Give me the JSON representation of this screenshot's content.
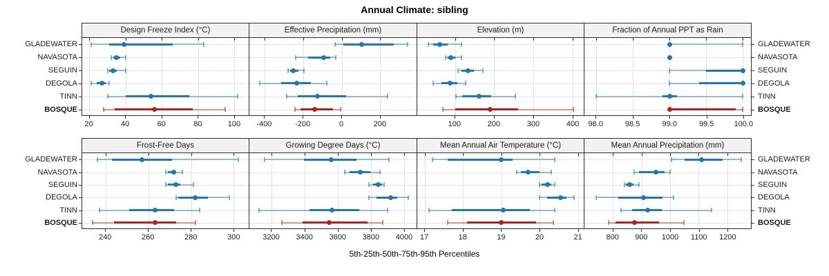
{
  "title": "Annual Climate: sibling",
  "caption": "5th-25th-50th-75th-95th Percentiles",
  "chart_data": {
    "type": "trellis-percentile-dotplot",
    "title": "Annual Climate: sibling",
    "xlabel": "5th-25th-50th-75th-95th Percentiles",
    "percentiles": [
      5,
      25,
      50,
      75,
      95
    ],
    "categories": [
      "GLADEWATER",
      "NAVASOTA",
      "SEGUIN",
      "DEGOLA",
      "TINN",
      "BOSQUE"
    ],
    "highlight_category": "BOSQUE",
    "layout": {
      "rows": 2,
      "cols": 4,
      "legend": "none",
      "grid": "dotted",
      "row_labels": "both-sides"
    },
    "colors": {
      "series": "#1F77B4",
      "highlight": "#B22222",
      "grid": "#C9C9C9",
      "strip_bg": "#F2F2F2",
      "border": "#2B2B2B"
    },
    "panels": [
      {
        "title": "Design Freeze Index (°C)",
        "ticks": [
          20,
          40,
          60,
          80,
          100
        ],
        "xlim": [
          16,
          108
        ],
        "series": {
          "GLADEWATER": [
            21,
            31,
            39,
            66,
            83
          ],
          "NAVASOTA": [
            32,
            33,
            35,
            37,
            40
          ],
          "SEGUIN": [
            30,
            31,
            33,
            35,
            40
          ],
          "DEGOLA": [
            21,
            24,
            27,
            29,
            31
          ],
          "TINN": [
            30,
            40,
            54,
            75,
            102
          ],
          "BOSQUE": [
            28,
            34,
            56,
            77,
            95
          ]
        }
      },
      {
        "title": "Effective Precipitation (mm)",
        "ticks": [
          -400,
          -200,
          0,
          200
        ],
        "xlim": [
          -480,
          390
        ],
        "series": {
          "GLADEWATER": [
            -35,
            10,
            105,
            270,
            345
          ],
          "NAVASOTA": [
            -240,
            -175,
            -95,
            -60,
            -30
          ],
          "SEGUIN": [
            -280,
            -268,
            -253,
            -225,
            -196
          ],
          "DEGOLA": [
            -425,
            -313,
            -235,
            -160,
            -76
          ],
          "TINN": [
            -285,
            -230,
            -125,
            25,
            240
          ],
          "BOSQUE": [
            -244,
            -215,
            -140,
            -46,
            -5
          ]
        }
      },
      {
        "title": "Elevation (m)",
        "ticks": [
          100,
          200,
          300,
          400
        ],
        "xlim": [
          4,
          428
        ],
        "series": {
          "GLADEWATER": [
            32,
            44,
            62,
            81,
            116
          ],
          "NAVASOTA": [
            77,
            82,
            90,
            100,
            116
          ],
          "SEGUIN": [
            108,
            116,
            134,
            148,
            172
          ],
          "DEGOLA": [
            45,
            65,
            88,
            106,
            128
          ],
          "TINN": [
            102,
            119,
            162,
            192,
            254
          ],
          "BOSQUE": [
            69,
            100,
            190,
            260,
            402
          ]
        }
      },
      {
        "title": "Fraction of Annual PPT as Rain",
        "ticks": [
          98.0,
          98.5,
          99.0,
          99.5,
          100.0
        ],
        "tick_labels": [
          "98.0",
          "98.5",
          "99.0",
          "99.5",
          "100.0"
        ],
        "xlim": [
          97.84,
          100.11
        ],
        "series": {
          "GLADEWATER": [
            99,
            99,
            99,
            99,
            100
          ],
          "NAVASOTA": [
            99,
            99,
            99,
            99,
            99
          ],
          "SEGUIN": [
            99,
            99.5,
            100,
            100,
            100
          ],
          "DEGOLA": [
            99,
            99.4,
            100,
            100,
            100
          ],
          "TINN": [
            98,
            98.9,
            99,
            99.1,
            100
          ],
          "BOSQUE": [
            99,
            99,
            99,
            99.9,
            100
          ]
        }
      },
      {
        "title": "Frost-Free Days",
        "ticks": [
          240,
          260,
          280,
          300
        ],
        "xlim": [
          229,
          307
        ],
        "series": {
          "GLADEWATER": [
            236,
            243,
            257,
            271,
            302
          ],
          "NAVASOTA": [
            268,
            269,
            272,
            273,
            276
          ],
          "SEGUIN": [
            268,
            269,
            273,
            275,
            281
          ],
          "DEGOLA": [
            273,
            274,
            282,
            288,
            298
          ],
          "TINN": [
            237,
            251,
            263,
            272,
            284
          ],
          "BOSQUE": [
            234,
            244,
            263,
            273,
            282
          ]
        }
      },
      {
        "title": "Growing Degree Days (°C)",
        "ticks": [
          3200,
          3400,
          3600,
          3800,
          4000
        ],
        "xlim": [
          3065,
          4075
        ],
        "series": {
          "GLADEWATER": [
            3155,
            3395,
            3560,
            3710,
            3910
          ],
          "NAVASOTA": [
            3640,
            3670,
            3735,
            3795,
            3855
          ],
          "SEGUIN": [
            3785,
            3810,
            3845,
            3865,
            3880
          ],
          "DEGOLA": [
            3785,
            3835,
            3920,
            3960,
            4025
          ],
          "TINN": [
            3125,
            3430,
            3565,
            3730,
            3900
          ],
          "BOSQUE": [
            3260,
            3385,
            3545,
            3780,
            3870
          ]
        }
      },
      {
        "title": "Mean Annual Air Temperature (°C)",
        "ticks": [
          17,
          18,
          19,
          20,
          21
        ],
        "xlim": [
          16.8,
          21.15
        ],
        "series": {
          "GLADEWATER": [
            17.2,
            17.6,
            19.0,
            19.3,
            20.4
          ],
          "NAVASOTA": [
            19.4,
            19.5,
            19.7,
            20.0,
            20.3
          ],
          "SEGUIN": [
            20.0,
            20.05,
            20.2,
            20.3,
            20.4
          ],
          "DEGOLA": [
            20.0,
            20.2,
            20.55,
            20.7,
            20.9
          ],
          "TINN": [
            17.1,
            17.7,
            19.05,
            19.75,
            20.4
          ],
          "BOSQUE": [
            17.6,
            18.1,
            19.0,
            19.9,
            20.35
          ]
        }
      },
      {
        "title": "Mean Annual Precipitation (mm)",
        "ticks": [
          800,
          900,
          1000,
          1100,
          1200
        ],
        "xlim": [
          700,
          1283
        ],
        "series": {
          "GLADEWATER": [
            1005,
            1050,
            1110,
            1185,
            1250
          ],
          "NAVASOTA": [
            875,
            890,
            950,
            980,
            1000
          ],
          "SEGUIN": [
            840,
            845,
            858,
            872,
            890
          ],
          "DEGOLA": [
            740,
            818,
            908,
            974,
            1012
          ],
          "TINN": [
            828,
            866,
            922,
            970,
            1145
          ],
          "BOSQUE": [
            784,
            810,
            876,
            962,
            1048
          ]
        }
      }
    ]
  }
}
